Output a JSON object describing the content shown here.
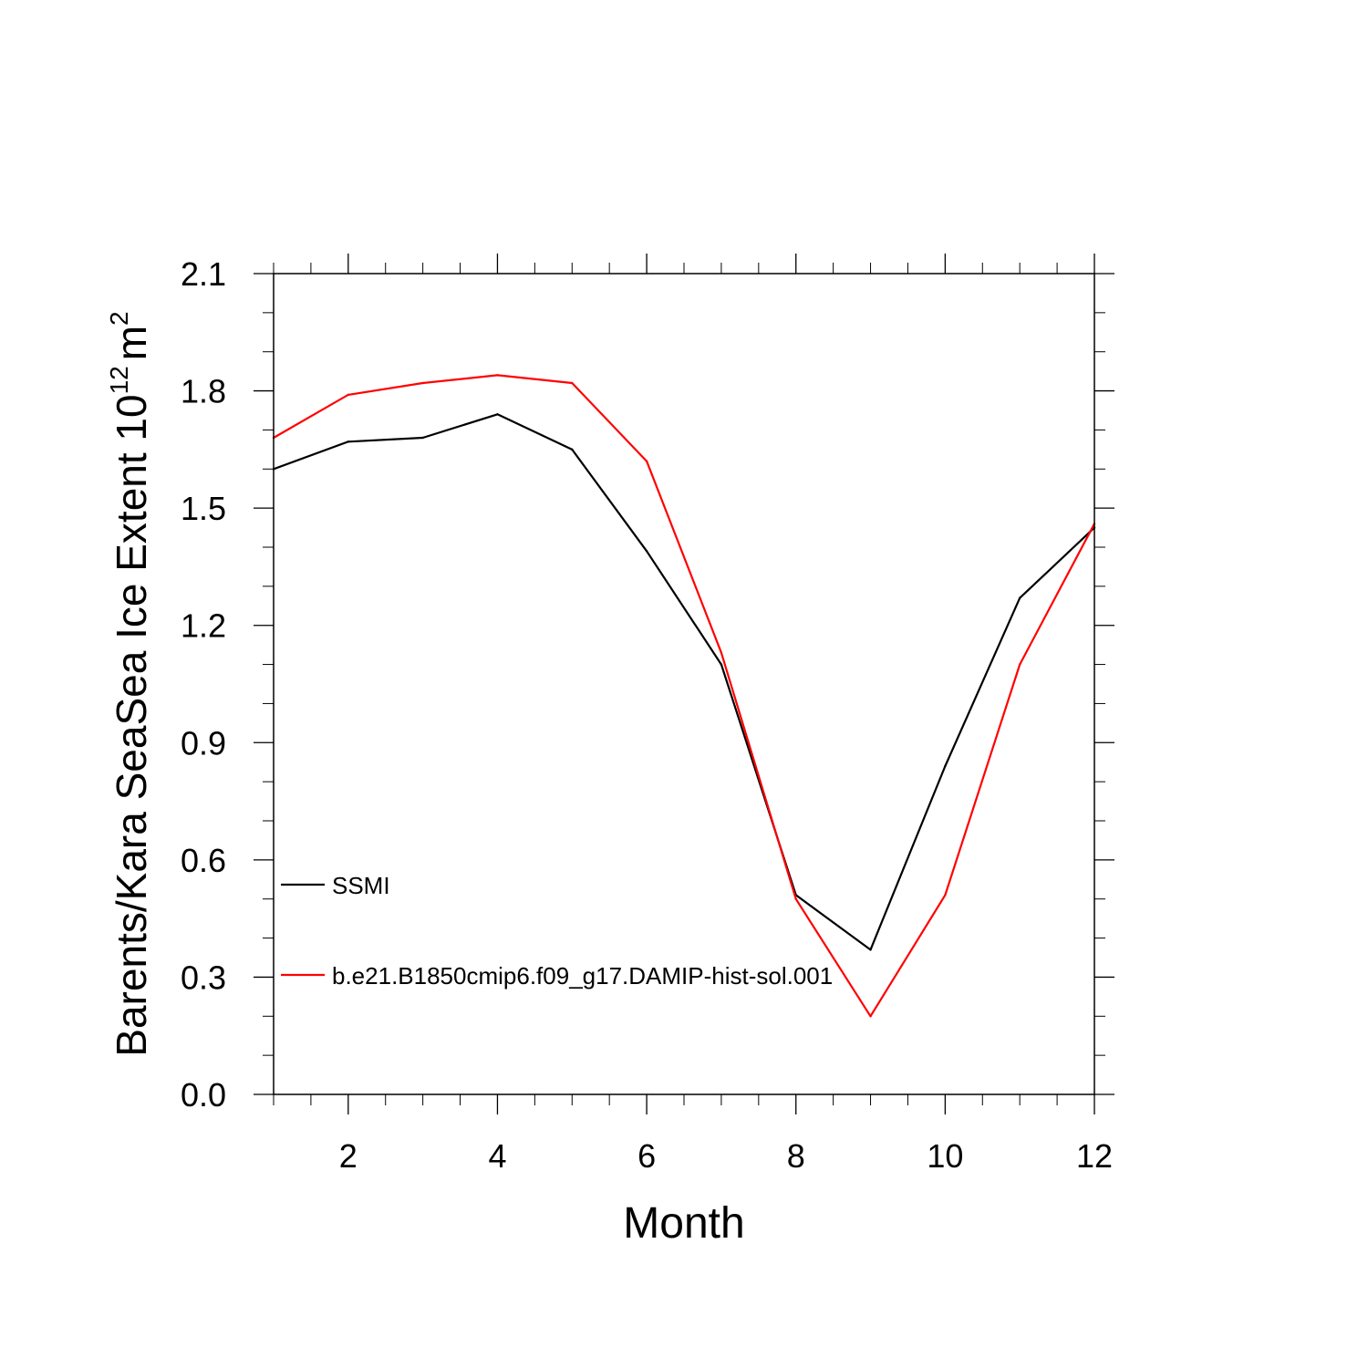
{
  "chart_data": {
    "type": "line",
    "title": "",
    "xlabel": "Month",
    "ylabel_main": "Barents/Kara SeaSea Ice Extent 10",
    "ylabel_exponent": "12",
    "ylabel_unit": "m",
    "ylabel_unit_exponent": "2",
    "xlim": [
      1,
      12
    ],
    "ylim": [
      0.0,
      2.1
    ],
    "x_ticks": [
      2,
      4,
      6,
      8,
      10,
      12
    ],
    "x_tick_labels": [
      "2",
      "4",
      "6",
      "8",
      "10",
      "12"
    ],
    "y_ticks": [
      0.0,
      0.3,
      0.6,
      0.9,
      1.2,
      1.5,
      1.8,
      2.1
    ],
    "y_tick_labels": [
      "0.0",
      "0.3",
      "0.6",
      "0.9",
      "1.2",
      "1.5",
      "1.8",
      "2.1"
    ],
    "grid": false,
    "legend_position": "bottom-left",
    "x": [
      1,
      2,
      3,
      4,
      5,
      6,
      7,
      8,
      9,
      10,
      11,
      12
    ],
    "series": [
      {
        "name": "SSMI",
        "color": "#000000",
        "values": [
          1.6,
          1.67,
          1.68,
          1.74,
          1.65,
          1.39,
          1.1,
          0.51,
          0.37,
          0.84,
          1.27,
          1.45
        ]
      },
      {
        "name": "b.e21.B1850cmip6.f09_g17.DAMIP-hist-sol.001",
        "color": "#ff0000",
        "values": [
          1.68,
          1.79,
          1.82,
          1.84,
          1.82,
          1.62,
          1.13,
          0.5,
          0.2,
          0.51,
          1.1,
          1.46
        ]
      }
    ]
  }
}
